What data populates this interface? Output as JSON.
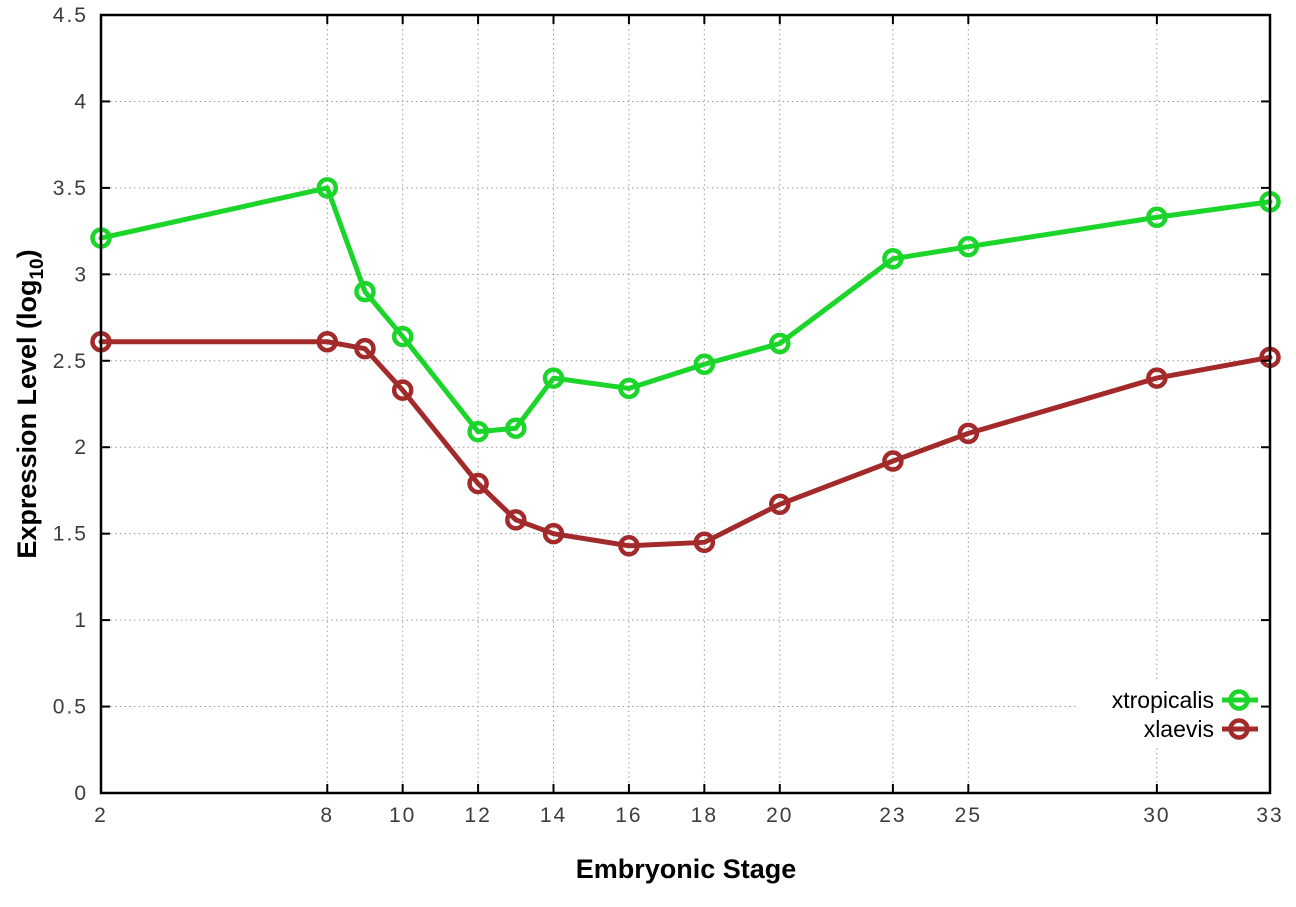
{
  "chart_data": {
    "type": "line",
    "title": "",
    "xlabel": "Embryonic Stage",
    "ylabel": {
      "prefix": "Expression Level (log",
      "sub": "10",
      "suffix": ")"
    },
    "xlim": [
      2,
      33
    ],
    "ylim": [
      0,
      4.5
    ],
    "x_ticks": [
      2,
      8,
      10,
      12,
      14,
      16,
      18,
      20,
      23,
      25,
      30,
      33
    ],
    "y_ticks": [
      0,
      0.5,
      1,
      1.5,
      2,
      2.5,
      3,
      3.5,
      4,
      4.5
    ],
    "grid": true,
    "grid_style": "dotted",
    "legend_position": "bottom-right-inside",
    "background_color": "#ffffff",
    "border_color": "#000000",
    "series": [
      {
        "name": "xtropicalis",
        "color": "#1bd52a",
        "marker": "open-circle",
        "x": [
          2,
          8,
          9,
          10,
          12,
          13,
          14,
          16,
          18,
          20,
          23,
          25,
          30,
          33
        ],
        "y": [
          3.21,
          3.5,
          2.9,
          2.64,
          2.09,
          2.11,
          2.4,
          2.34,
          2.48,
          2.6,
          3.09,
          3.16,
          3.33,
          3.42
        ]
      },
      {
        "name": "xlaevis",
        "color": "#a32a2a",
        "marker": "open-circle",
        "x": [
          2,
          8,
          9,
          10,
          12,
          13,
          14,
          16,
          18,
          20,
          23,
          25,
          30,
          33
        ],
        "y": [
          2.61,
          2.61,
          2.57,
          2.33,
          1.79,
          1.58,
          1.5,
          1.43,
          1.45,
          1.67,
          1.92,
          2.08,
          2.4,
          2.52
        ]
      }
    ]
  }
}
